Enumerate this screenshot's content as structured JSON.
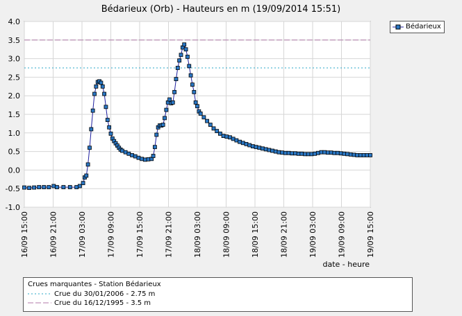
{
  "chart_data": {
    "type": "line",
    "title": "Bédarieux (Orb) - Hauteurs en m (19/09/2014 15:51)",
    "xlabel": "date - heure",
    "ylabel": "",
    "ylim": [
      -1.0,
      4.0
    ],
    "yticks": [
      "4.0",
      "3.5",
      "3.0",
      "2.5",
      "2.0",
      "1.5",
      "1.0",
      "0.5",
      "0.0",
      "-0.5",
      "-1.0"
    ],
    "xticks": [
      "16/09 15:00",
      "16/09 21:00",
      "17/09 03:00",
      "17/09 09:00",
      "17/09 15:00",
      "17/09 21:00",
      "18/09 03:00",
      "18/09 09:00",
      "18/09 15:00",
      "18/09 21:00",
      "19/09 03:00",
      "19/09 09:00",
      "19/09 15:00"
    ],
    "grid": true,
    "legend_position": "top-right",
    "series": [
      {
        "name": "Bédarieux",
        "color": "#1f1f9f",
        "marker_color": "#2a77c4",
        "points": [
          [
            0,
            -0.47
          ],
          [
            1.5,
            -0.48
          ],
          [
            3,
            -0.47
          ],
          [
            4.5,
            -0.46
          ],
          [
            6,
            -0.46
          ],
          [
            7.5,
            -0.46
          ],
          [
            9,
            -0.43
          ],
          [
            10,
            -0.46
          ],
          [
            12,
            -0.46
          ],
          [
            14,
            -0.46
          ],
          [
            16,
            -0.46
          ],
          [
            17,
            -0.43
          ],
          [
            18,
            -0.35
          ],
          [
            18.5,
            -0.2
          ],
          [
            19,
            -0.15
          ],
          [
            19.5,
            0.15
          ],
          [
            20,
            0.6
          ],
          [
            20.5,
            1.1
          ],
          [
            21,
            1.6
          ],
          [
            21.5,
            2.05
          ],
          [
            22,
            2.25
          ],
          [
            22.5,
            2.37
          ],
          [
            23,
            2.39
          ],
          [
            23.5,
            2.35
          ],
          [
            24,
            2.25
          ],
          [
            24.5,
            2.05
          ],
          [
            25,
            1.7
          ],
          [
            25.5,
            1.35
          ],
          [
            26,
            1.15
          ],
          [
            26.5,
            0.98
          ],
          [
            27,
            0.85
          ],
          [
            27.5,
            0.78
          ],
          [
            28,
            0.72
          ],
          [
            28.5,
            0.66
          ],
          [
            29,
            0.6
          ],
          [
            29.5,
            0.55
          ],
          [
            30,
            0.52
          ],
          [
            31,
            0.48
          ],
          [
            32,
            0.44
          ],
          [
            33,
            0.4
          ],
          [
            34,
            0.37
          ],
          [
            35,
            0.33
          ],
          [
            36,
            0.3
          ],
          [
            37,
            0.28
          ],
          [
            38,
            0.29
          ],
          [
            39,
            0.3
          ],
          [
            39.5,
            0.38
          ],
          [
            40,
            0.62
          ],
          [
            40.5,
            0.95
          ],
          [
            41,
            1.15
          ],
          [
            41.5,
            1.2
          ],
          [
            42,
            1.2
          ],
          [
            42.5,
            1.22
          ],
          [
            43,
            1.4
          ],
          [
            43.5,
            1.62
          ],
          [
            44,
            1.82
          ],
          [
            44.5,
            1.9
          ],
          [
            45,
            1.8
          ],
          [
            45.5,
            1.82
          ],
          [
            46,
            2.1
          ],
          [
            46.5,
            2.45
          ],
          [
            47,
            2.75
          ],
          [
            47.5,
            2.95
          ],
          [
            48,
            3.1
          ],
          [
            48.5,
            3.3
          ],
          [
            49,
            3.38
          ],
          [
            49.5,
            3.25
          ],
          [
            50,
            3.05
          ],
          [
            50.5,
            2.8
          ],
          [
            51,
            2.55
          ],
          [
            51.5,
            2.3
          ],
          [
            52,
            2.1
          ],
          [
            52.5,
            1.82
          ],
          [
            53,
            1.72
          ],
          [
            53.5,
            1.58
          ],
          [
            54,
            1.52
          ],
          [
            55,
            1.42
          ],
          [
            56,
            1.32
          ],
          [
            57,
            1.22
          ],
          [
            58,
            1.12
          ],
          [
            59,
            1.05
          ],
          [
            60,
            0.98
          ],
          [
            61,
            0.92
          ],
          [
            62,
            0.9
          ],
          [
            63,
            0.88
          ],
          [
            64,
            0.84
          ],
          [
            65,
            0.8
          ],
          [
            66,
            0.76
          ],
          [
            67,
            0.73
          ],
          [
            68,
            0.7
          ],
          [
            69,
            0.67
          ],
          [
            70,
            0.64
          ],
          [
            71,
            0.62
          ],
          [
            72,
            0.6
          ],
          [
            73,
            0.58
          ],
          [
            74,
            0.56
          ],
          [
            75,
            0.54
          ],
          [
            76,
            0.52
          ],
          [
            77,
            0.5
          ],
          [
            78,
            0.48
          ],
          [
            79,
            0.47
          ],
          [
            80,
            0.46
          ],
          [
            81,
            0.46
          ],
          [
            82,
            0.45
          ],
          [
            83,
            0.45
          ],
          [
            84,
            0.44
          ],
          [
            85,
            0.44
          ],
          [
            86,
            0.43
          ],
          [
            87,
            0.43
          ],
          [
            88,
            0.43
          ],
          [
            89,
            0.44
          ],
          [
            90,
            0.46
          ],
          [
            91,
            0.48
          ],
          [
            92,
            0.48
          ],
          [
            93,
            0.47
          ],
          [
            94,
            0.47
          ],
          [
            95,
            0.46
          ],
          [
            96,
            0.46
          ],
          [
            97,
            0.45
          ],
          [
            98,
            0.44
          ],
          [
            99,
            0.43
          ],
          [
            100,
            0.42
          ],
          [
            101,
            0.41
          ],
          [
            102,
            0.4
          ],
          [
            103,
            0.4
          ],
          [
            104,
            0.4
          ],
          [
            105,
            0.4
          ],
          [
            106,
            0.4
          ]
        ]
      }
    ],
    "reference_lines": [
      {
        "label": "Crue du 30/01/2006 - 2.75 m",
        "value": 2.75,
        "color": "#2aa7c7",
        "style": "dotted"
      },
      {
        "label": "Crue du 16/12/1995 - 3.5 m",
        "value": 3.5,
        "color": "#b07aa8",
        "style": "dashed"
      }
    ],
    "notes_title": "Crues marquantes - Station Bédarieux"
  }
}
